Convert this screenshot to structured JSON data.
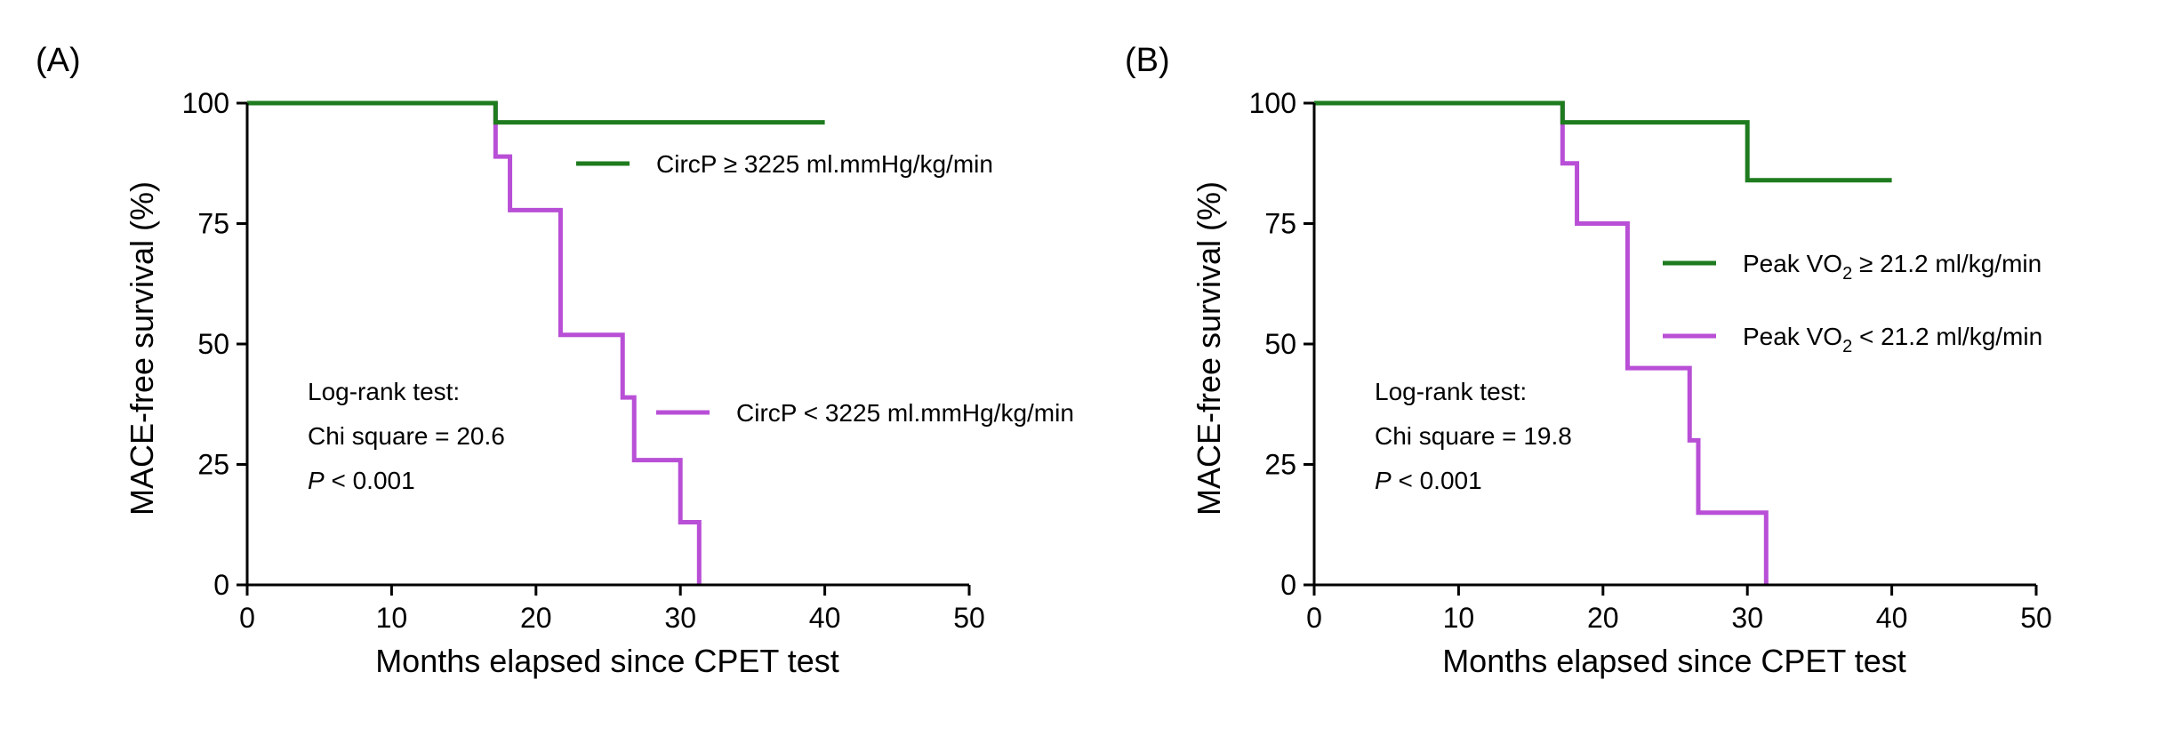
{
  "chart_data": [
    {
      "panel_label": "(A)",
      "type": "line",
      "subtype": "kaplan-meier step",
      "xlabel": "Months elapsed since CPET test",
      "ylabel": "MACE-free survival (%)",
      "xlim": [
        0,
        50
      ],
      "ylim": [
        0,
        100
      ],
      "x_ticks": [
        0,
        10,
        20,
        30,
        40,
        50
      ],
      "y_ticks": [
        0,
        25,
        50,
        75,
        100
      ],
      "grid": false,
      "series": [
        {
          "name": "CircP ≥ 3225 ml.mmHg/kg/min",
          "legend_text": "CircP ≥ 3225 ml.mmHg/kg/min",
          "color": "#1e7b1e",
          "x": [
            0,
            17.2,
            40
          ],
          "y": [
            100,
            96,
            96
          ]
        },
        {
          "name": "CircP < 3225 ml.mmHg/kg/min",
          "legend_text": "CircP < 3225 ml.mmHg/kg/min",
          "color": "#b84fd6",
          "x": [
            0,
            17.2,
            18.2,
            21.7,
            26.0,
            26.8,
            30.0,
            31.3
          ],
          "y": [
            100,
            88.9,
            77.8,
            51.9,
            38.9,
            25.9,
            13.0,
            0
          ]
        }
      ],
      "annotation": {
        "line1": "Log-rank test:",
        "line2": "Chi square = 20.6",
        "p_symbol": "P",
        "p_value": " < 0.001"
      }
    },
    {
      "panel_label": "(B)",
      "type": "line",
      "subtype": "kaplan-meier step",
      "xlabel": "Months elapsed since CPET test",
      "ylabel": "MACE-free survival (%)",
      "xlim": [
        0,
        50
      ],
      "ylim": [
        0,
        100
      ],
      "x_ticks": [
        0,
        10,
        20,
        30,
        40,
        50
      ],
      "y_ticks": [
        0,
        25,
        50,
        75,
        100
      ],
      "grid": false,
      "series": [
        {
          "name": "Peak VO2 ≥ 21.2 ml/kg/min",
          "legend_pre": "Peak VO",
          "legend_sub": "2",
          "legend_post": " ≥ 21.2 ml/kg/min",
          "color": "#1e7b1e",
          "x": [
            0,
            17.2,
            30.0,
            40
          ],
          "y": [
            100,
            96,
            84,
            84
          ]
        },
        {
          "name": "Peak VO2 < 21.2 ml/kg/min",
          "legend_pre": "Peak VO",
          "legend_sub": "2",
          "legend_post": " < 21.2 ml/kg/min",
          "color": "#b84fd6",
          "x": [
            0,
            17.2,
            18.2,
            21.7,
            26.0,
            26.6,
            31.3
          ],
          "y": [
            100,
            87.5,
            75,
            45,
            30,
            15,
            0
          ]
        }
      ],
      "annotation": {
        "line1": "Log-rank test:",
        "line2": "Chi square = 19.8",
        "p_symbol": "P",
        "p_value": " < 0.001"
      }
    }
  ]
}
